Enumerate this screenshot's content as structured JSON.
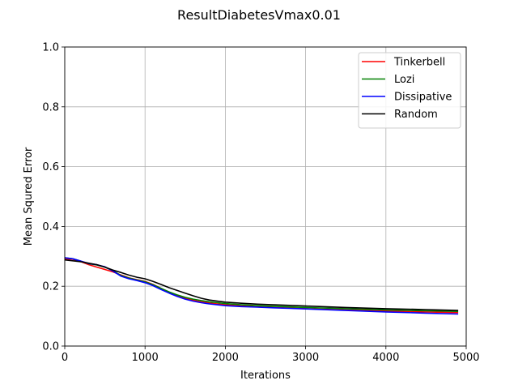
{
  "chart_data": {
    "type": "line",
    "title": "ResultDiabetesVmax0.01",
    "xlabel": "Iterations",
    "ylabel": "Mean Squred Error",
    "xlim": [
      0,
      5000
    ],
    "ylim": [
      0.0,
      1.0
    ],
    "xticks": [
      0,
      1000,
      2000,
      3000,
      4000,
      5000
    ],
    "yticks": [
      0.0,
      0.2,
      0.4,
      0.6,
      0.8,
      1.0
    ],
    "xtick_labels": [
      "0",
      "1000",
      "2000",
      "3000",
      "4000",
      "5000"
    ],
    "ytick_labels": [
      "0.0",
      "0.2",
      "0.4",
      "0.6",
      "0.8",
      "1.0"
    ],
    "grid": true,
    "legend_position": "top-right",
    "series": [
      {
        "name": "Tinkerbell",
        "color": "#ff0000",
        "x": [
          0,
          100,
          200,
          300,
          400,
          500,
          600,
          700,
          800,
          900,
          1000,
          1100,
          1200,
          1300,
          1400,
          1500,
          1600,
          1700,
          1800,
          1900,
          2000,
          2200,
          2400,
          2600,
          2800,
          3000,
          3500,
          4000,
          4500,
          4900
        ],
        "y": [
          0.292,
          0.29,
          0.282,
          0.272,
          0.264,
          0.256,
          0.248,
          0.238,
          0.228,
          0.222,
          0.216,
          0.206,
          0.193,
          0.18,
          0.169,
          0.16,
          0.153,
          0.148,
          0.144,
          0.141,
          0.138,
          0.134,
          0.131,
          0.129,
          0.127,
          0.125,
          0.121,
          0.117,
          0.114,
          0.112
        ]
      },
      {
        "name": "Lozi",
        "color": "#008000",
        "x": [
          0,
          100,
          200,
          300,
          400,
          500,
          600,
          700,
          800,
          900,
          1000,
          1100,
          1200,
          1300,
          1400,
          1500,
          1600,
          1700,
          1800,
          1900,
          2000,
          2200,
          2400,
          2600,
          2800,
          3000,
          3500,
          4000,
          4500,
          4900
        ],
        "y": [
          0.295,
          0.292,
          0.284,
          0.275,
          0.271,
          0.264,
          0.252,
          0.236,
          0.227,
          0.221,
          0.215,
          0.205,
          0.193,
          0.181,
          0.171,
          0.163,
          0.157,
          0.152,
          0.148,
          0.145,
          0.142,
          0.138,
          0.135,
          0.133,
          0.131,
          0.129,
          0.125,
          0.121,
          0.118,
          0.116
        ]
      },
      {
        "name": "Dissipative",
        "color": "#0000ff",
        "x": [
          0,
          100,
          200,
          300,
          400,
          500,
          600,
          700,
          800,
          900,
          1000,
          1100,
          1200,
          1300,
          1400,
          1500,
          1600,
          1700,
          1800,
          1900,
          2000,
          2200,
          2400,
          2600,
          2800,
          3000,
          3500,
          4000,
          4500,
          4900
        ],
        "y": [
          0.295,
          0.292,
          0.284,
          0.276,
          0.272,
          0.265,
          0.251,
          0.234,
          0.225,
          0.219,
          0.212,
          0.202,
          0.189,
          0.177,
          0.166,
          0.157,
          0.15,
          0.145,
          0.141,
          0.138,
          0.135,
          0.132,
          0.13,
          0.128,
          0.126,
          0.124,
          0.119,
          0.114,
          0.11,
          0.107
        ]
      },
      {
        "name": "Random",
        "color": "#000000",
        "x": [
          0,
          100,
          200,
          300,
          400,
          500,
          600,
          700,
          800,
          900,
          1000,
          1100,
          1200,
          1300,
          1400,
          1500,
          1600,
          1700,
          1800,
          1900,
          2000,
          2200,
          2400,
          2600,
          2800,
          3000,
          3500,
          4000,
          4500,
          4900
        ],
        "y": [
          0.288,
          0.285,
          0.282,
          0.277,
          0.272,
          0.264,
          0.254,
          0.246,
          0.237,
          0.23,
          0.225,
          0.216,
          0.206,
          0.195,
          0.186,
          0.177,
          0.168,
          0.16,
          0.154,
          0.15,
          0.147,
          0.143,
          0.14,
          0.138,
          0.136,
          0.134,
          0.129,
          0.125,
          0.122,
          0.119
        ]
      }
    ]
  }
}
